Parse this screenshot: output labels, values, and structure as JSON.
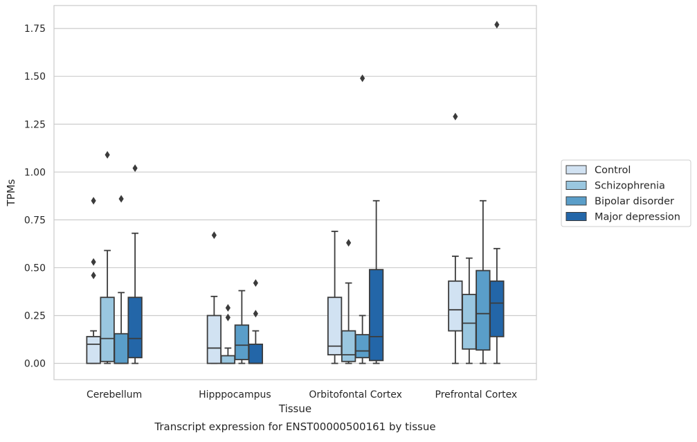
{
  "chart_data": {
    "type": "box",
    "xlabel": "Tissue",
    "ylabel": "TPMs",
    "caption": "Transcript expression for ENST00000500161 by tissue",
    "ylim": [
      -0.085,
      1.87
    ],
    "yticks": [
      "0.00",
      "0.25",
      "0.50",
      "0.75",
      "1.00",
      "1.25",
      "1.50",
      "1.75"
    ],
    "grid": true,
    "legend_position": "right",
    "categories": [
      "Cerebellum",
      "Hipppocampus",
      "Orbitofontal Cortex",
      "Prefrontal Cortex"
    ],
    "series": [
      {
        "name": "Control",
        "color": "#d1e2f2",
        "boxes": [
          {
            "whislo": 0.0,
            "q1": 0.0,
            "med": 0.1,
            "q3": 0.14,
            "whishi": 0.17,
            "fliers": [
              0.46,
              0.53,
              0.85
            ]
          },
          {
            "whislo": 0.0,
            "q1": 0.0,
            "med": 0.08,
            "q3": 0.25,
            "whishi": 0.35,
            "fliers": [
              0.67
            ]
          },
          {
            "whislo": 0.0,
            "q1": 0.045,
            "med": 0.09,
            "q3": 0.345,
            "whishi": 0.69,
            "fliers": []
          },
          {
            "whislo": 0.0,
            "q1": 0.17,
            "med": 0.28,
            "q3": 0.43,
            "whishi": 0.56,
            "fliers": [
              1.29
            ]
          }
        ]
      },
      {
        "name": "Schizophrenia",
        "color": "#9ac7e0",
        "boxes": [
          {
            "whislo": 0.0,
            "q1": 0.01,
            "med": 0.13,
            "q3": 0.345,
            "whishi": 0.59,
            "fliers": [
              1.09
            ]
          },
          {
            "whislo": 0.0,
            "q1": 0.0,
            "med": 0.0,
            "q3": 0.04,
            "whishi": 0.08,
            "fliers": [
              0.24,
              0.29
            ]
          },
          {
            "whislo": 0.0,
            "q1": 0.01,
            "med": 0.045,
            "q3": 0.17,
            "whishi": 0.42,
            "fliers": [
              0.63
            ]
          },
          {
            "whislo": 0.0,
            "q1": 0.075,
            "med": 0.21,
            "q3": 0.36,
            "whishi": 0.55,
            "fliers": []
          }
        ]
      },
      {
        "name": "Bipolar disorder",
        "color": "#5a9ec9",
        "boxes": [
          {
            "whislo": 0.0,
            "q1": 0.0,
            "med": 0.0,
            "q3": 0.155,
            "whishi": 0.37,
            "fliers": [
              0.86
            ]
          },
          {
            "whislo": 0.0,
            "q1": 0.02,
            "med": 0.095,
            "q3": 0.2,
            "whishi": 0.38,
            "fliers": []
          },
          {
            "whislo": 0.0,
            "q1": 0.03,
            "med": 0.065,
            "q3": 0.15,
            "whishi": 0.25,
            "fliers": [
              1.49
            ]
          },
          {
            "whislo": 0.0,
            "q1": 0.07,
            "med": 0.26,
            "q3": 0.485,
            "whishi": 0.85,
            "fliers": []
          }
        ]
      },
      {
        "name": "Major depression",
        "color": "#2366a8",
        "boxes": [
          {
            "whislo": 0.0,
            "q1": 0.03,
            "med": 0.13,
            "q3": 0.345,
            "whishi": 0.68,
            "fliers": [
              1.02
            ]
          },
          {
            "whislo": 0.0,
            "q1": 0.0,
            "med": 0.0,
            "q3": 0.1,
            "whishi": 0.17,
            "fliers": [
              0.26,
              0.42
            ]
          },
          {
            "whislo": 0.0,
            "q1": 0.015,
            "med": 0.14,
            "q3": 0.49,
            "whishi": 0.85,
            "fliers": []
          },
          {
            "whislo": 0.0,
            "q1": 0.14,
            "med": 0.315,
            "q3": 0.43,
            "whishi": 0.6,
            "fliers": [
              1.77
            ]
          }
        ]
      }
    ]
  }
}
